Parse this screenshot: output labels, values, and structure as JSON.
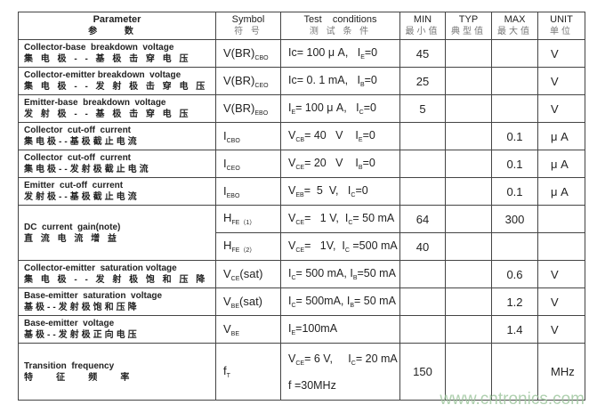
{
  "header": {
    "parameter": "Parameter",
    "parameter_zh": "参 数",
    "symbol": "Symbol",
    "symbol_zh": "符 号",
    "test": "Test    conditions",
    "test_zh": "测 试 条 件",
    "min": "MIN",
    "min_zh": "最小值",
    "typ": "TYP",
    "typ_zh": "典型值",
    "max": "MAX",
    "max_zh": "最大值",
    "unit": "UNIT",
    "unit_zh": "单位"
  },
  "rows": [
    {
      "param": "Collector-base  breakdown  voltage",
      "param_zh": "集 电 极 - - 基 极 击 穿 电 压",
      "symbol": [
        [
          "V(BR)",
          "CBO"
        ]
      ],
      "cond": [
        [
          "Ic= 100 μ A,   I",
          ""
        ],
        [
          "",
          "E"
        ],
        [
          "=0",
          ""
        ]
      ],
      "min": "45",
      "typ": "",
      "max": "",
      "unit": "V"
    },
    {
      "param": "Collector-emitter breakdown  voltage",
      "param_zh": "集 电 极 - - 发 射 极 击 穿 电 压",
      "symbol": [
        [
          "V(BR)",
          "CEO"
        ]
      ],
      "cond": [
        [
          "Ic= 0. 1 mA,   I",
          "B"
        ],
        [
          "=0",
          ""
        ]
      ],
      "min": "25",
      "typ": "",
      "max": "",
      "unit": "V"
    },
    {
      "param": "Emitter-base  breakdown  voltage",
      "param_zh": "发 射 极 - - 基 极 击 穿 电 压",
      "symbol": [
        [
          "V(BR)",
          "EBO"
        ]
      ],
      "cond": [
        [
          "I",
          "E"
        ],
        [
          "= 100 μ A,   I",
          "C"
        ],
        [
          "=0",
          ""
        ]
      ],
      "min": "5",
      "typ": "",
      "max": "",
      "unit": "V"
    },
    {
      "param": "Collector  cut-off  current",
      "param_zh": "集电极--基极截止电流",
      "symbol": [
        [
          "I",
          "CBO"
        ]
      ],
      "cond": [
        [
          "V",
          "CB"
        ],
        [
          "= 40   V    I",
          "E"
        ],
        [
          "=0",
          ""
        ]
      ],
      "min": "",
      "typ": "",
      "max": "0.1",
      "unit": "μ A"
    },
    {
      "param": "Collector  cut-off  current",
      "param_zh": "集电极--发射极截止电流",
      "symbol": [
        [
          "I",
          "CEO"
        ]
      ],
      "cond": [
        [
          "V",
          "CE"
        ],
        [
          "= 20   V    I",
          "B"
        ],
        [
          "=0",
          ""
        ]
      ],
      "min": "",
      "typ": "",
      "max": "0.1",
      "unit": "μ A"
    },
    {
      "param": "Emitter  cut-off  current",
      "param_zh": "发射极--基极截止电流",
      "symbol": [
        [
          "I",
          "EBO"
        ]
      ],
      "cond": [
        [
          "V",
          "EB"
        ],
        [
          "=  5  V,   I",
          "C"
        ],
        [
          "=0",
          ""
        ]
      ],
      "min": "",
      "typ": "",
      "max": "0.1",
      "unit": "μ A"
    },
    {
      "param": "DC  current  gain(note)",
      "param_zh": "直 流 电 流 增 益",
      "symbol": [
        [
          "H",
          "FE（1）"
        ]
      ],
      "cond": [
        [
          "V",
          "CE"
        ],
        [
          "=   1 V,  I",
          "C"
        ],
        [
          "= 50 mA",
          ""
        ]
      ],
      "min": "64",
      "typ": "",
      "max": "300",
      "unit": "",
      "sub": {
        "symbol": [
          [
            "H",
            "FE（2）"
          ]
        ],
        "cond": [
          [
            "V",
            "CE"
          ],
          [
            "=   1V,  I",
            "C"
          ],
          [
            " =500 mA",
            ""
          ]
        ],
        "min": "40",
        "typ": "",
        "max": "",
        "unit": ""
      }
    },
    {
      "param": "Collector-emitter  saturation voltage",
      "param_zh": "集 电 极 - - 发 射 极 饱 和 压 降",
      "symbol": [
        [
          "V",
          "CE"
        ],
        [
          "(sat)",
          ""
        ]
      ],
      "cond": [
        [
          "I",
          "C"
        ],
        [
          "= 500 mA, I",
          "B"
        ],
        [
          "=50 mA",
          ""
        ]
      ],
      "min": "",
      "typ": "",
      "max": "0.6",
      "unit": "V"
    },
    {
      "param": "Base-emitter  saturation  voltage",
      "param_zh": "基极--发射极饱和压降",
      "symbol": [
        [
          "V",
          "BE"
        ],
        [
          "(sat)",
          ""
        ]
      ],
      "cond": [
        [
          "I",
          "C"
        ],
        [
          "= 500mA, I",
          "B"
        ],
        [
          "= 50 mA",
          ""
        ]
      ],
      "min": "",
      "typ": "",
      "max": "1.2",
      "unit": "V"
    },
    {
      "param": "Base-emitter  voltage",
      "param_zh": "基极--发射极正向电压",
      "symbol": [
        [
          "V",
          "BE"
        ]
      ],
      "cond": [
        [
          "I",
          "E"
        ],
        [
          "=100mA",
          ""
        ]
      ],
      "min": "",
      "typ": "",
      "max": "1.4",
      "unit": "V"
    },
    {
      "param": "Transition  frequency",
      "param_zh": "特    征    频    率",
      "symbol": [
        [
          "f",
          "T"
        ]
      ],
      "cond": [
        [
          "V",
          "CE"
        ],
        [
          "= 6 V,     I",
          "C"
        ],
        [
          "= 20 mA",
          ""
        ]
      ],
      "cond2": "f =30MHz",
      "min": "150",
      "typ": "",
      "max": "",
      "unit": "MHz"
    }
  ],
  "watermark": "www.cntronics.com"
}
